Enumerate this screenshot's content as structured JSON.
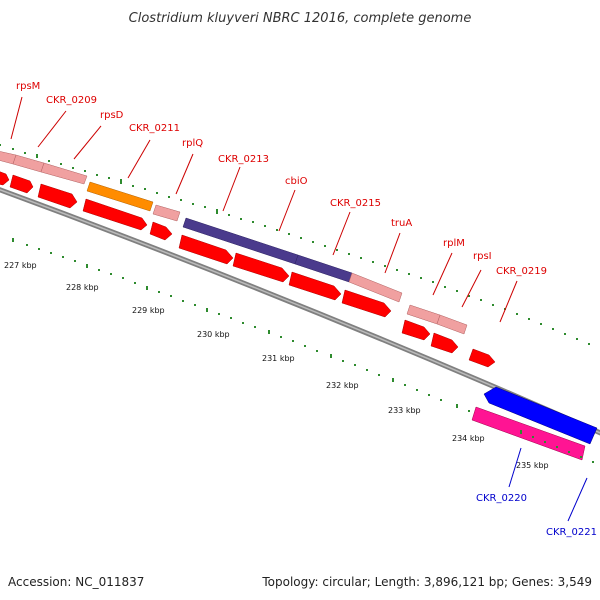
{
  "title": "Clostridium kluyveri NBRC 12016, complete genome",
  "accession": "Accession: NC_011837",
  "summary": "Topology: circular; Length: 3,896,121 bp; Genes: 3,549",
  "ruler": [
    "227 kbp",
    "228 kbp",
    "229 kbp",
    "230 kbp",
    "231 kbp",
    "232 kbp",
    "233 kbp",
    "234 kbp",
    "235 kbp"
  ],
  "genes": [
    {
      "name": "rpsM",
      "color": "#dd0000"
    },
    {
      "name": "CKR_0209",
      "color": "#dd0000"
    },
    {
      "name": "rpsD",
      "color": "#dd0000"
    },
    {
      "name": "CKR_0211",
      "color": "#dd0000"
    },
    {
      "name": "rplQ",
      "color": "#dd0000"
    },
    {
      "name": "CKR_0213",
      "color": "#dd0000"
    },
    {
      "name": "cbiO",
      "color": "#dd0000"
    },
    {
      "name": "CKR_0215",
      "color": "#dd0000"
    },
    {
      "name": "truA",
      "color": "#dd0000"
    },
    {
      "name": "rplM",
      "color": "#dd0000"
    },
    {
      "name": "rpsI",
      "color": "#dd0000"
    },
    {
      "name": "CKR_0219",
      "color": "#dd0000"
    },
    {
      "name": "CKR_0220",
      "color": "#0000cc"
    },
    {
      "name": "CKR_0221",
      "color": "#0000cc"
    }
  ],
  "colors": {
    "backbone": "#808080",
    "cds": "#ff0000",
    "rna_pink": "#f09a9a",
    "orange": "#ff8c00",
    "purple": "#4a3a8c",
    "blue": "#0000ff",
    "magenta": "#ff1493",
    "ticks": "#008000"
  }
}
